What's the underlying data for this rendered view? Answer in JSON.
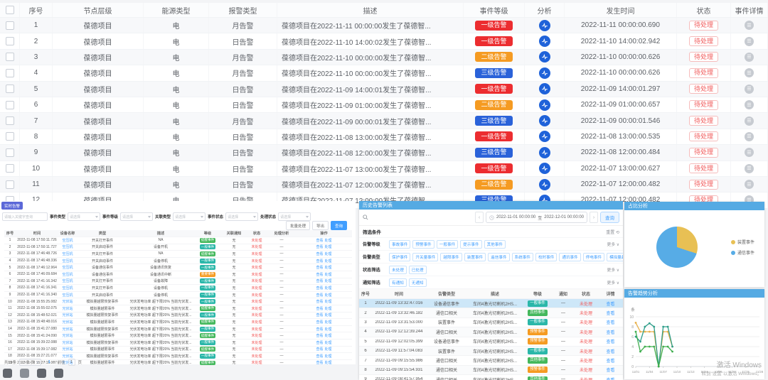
{
  "main_table": {
    "columns": [
      "",
      "序号",
      "节点层级",
      "能源类型",
      "报警类型",
      "描述",
      "事件等级",
      "分析",
      "发生时间",
      "状态",
      "事件详情"
    ],
    "level_colors": {
      "一级告警": "#ec2d30",
      "二级告警": "#f59b22",
      "三级告警": "#2a62d9"
    },
    "rows": [
      {
        "no": "1",
        "node": "葆德项目",
        "energy": "电",
        "alarm": "月告警",
        "desc": "葆德项目在2022-11-11 00:00:00发生了葆德智...",
        "level": "一级告警",
        "time": "2022-11-11 00:00:00.690",
        "status": "待处理"
      },
      {
        "no": "2",
        "node": "葆德项目",
        "energy": "电",
        "alarm": "日告警",
        "desc": "葆德项目在2022-11-10 14:00:02发生了葆德智...",
        "level": "一级告警",
        "time": "2022-11-10 14:00:02.942",
        "status": "待处理"
      },
      {
        "no": "3",
        "node": "葆德项目",
        "energy": "电",
        "alarm": "月告警",
        "desc": "葆德项目在2022-11-10 00:00:00发生了葆德智...",
        "level": "二级告警",
        "time": "2022-11-10 00:00:00.626",
        "status": "待处理"
      },
      {
        "no": "4",
        "node": "葆德项目",
        "energy": "电",
        "alarm": "月告警",
        "desc": "葆德项目在2022-11-10 00:00:00发生了葆德智...",
        "level": "三级告警",
        "time": "2022-11-10 00:00:00.626",
        "status": "待处理"
      },
      {
        "no": "5",
        "node": "葆德项目",
        "energy": "电",
        "alarm": "日告警",
        "desc": "葆德项目在2022-11-09 14:00:01发生了葆德智...",
        "level": "一级告警",
        "time": "2022-11-09 14:00:01.297",
        "status": "待处理"
      },
      {
        "no": "6",
        "node": "葆德项目",
        "energy": "电",
        "alarm": "日告警",
        "desc": "葆德项目在2022-11-09 01:00:00发生了葆德智...",
        "level": "二级告警",
        "time": "2022-11-09 01:00:00.657",
        "status": "待处理"
      },
      {
        "no": "7",
        "node": "葆德项目",
        "energy": "电",
        "alarm": "月告警",
        "desc": "葆德项目在2022-11-09 00:00:01发生了葆德智...",
        "level": "三级告警",
        "time": "2022-11-09 00:00:01.546",
        "status": "待处理"
      },
      {
        "no": "8",
        "node": "葆德项目",
        "energy": "电",
        "alarm": "日告警",
        "desc": "葆德项目在2022-11-08 13:00:00发生了葆德智...",
        "level": "一级告警",
        "time": "2022-11-08 13:00:00.535",
        "status": "待处理"
      },
      {
        "no": "9",
        "node": "葆德项目",
        "energy": "电",
        "alarm": "日告警",
        "desc": "葆德项目在2022-11-08 12:00:00发生了葆德智...",
        "level": "三级告警",
        "time": "2022-11-08 12:00:00.484",
        "status": "待处理"
      },
      {
        "no": "10",
        "node": "葆德项目",
        "energy": "电",
        "alarm": "日告警",
        "desc": "葆德项目在2022-11-07 13:00:00发生了葆德智...",
        "level": "一级告警",
        "time": "2022-11-07 13:00:00.627",
        "status": "待处理"
      },
      {
        "no": "11",
        "node": "葆德项目",
        "energy": "电",
        "alarm": "日告警",
        "desc": "葆德项目在2022-11-07 12:00:00发生了葆德智...",
        "level": "二级告警",
        "time": "2022-11-07 12:00:00.482",
        "status": "待处理"
      },
      {
        "no": "12",
        "node": "葆德项目",
        "energy": "电",
        "alarm": "日告警",
        "desc": "葆德项目在2022-11-07 12:00:00发生了葆德智...",
        "level": "三级告警",
        "time": "2022-11-07 12:00:00.482",
        "status": "待处理"
      }
    ]
  },
  "left_panel": {
    "tab_label": "实时告警",
    "search_placeholder": "请输入关键字查询",
    "filters": [
      {
        "label": "事件类型",
        "value": "请选择"
      },
      {
        "label": "事件等级",
        "value": "请选择"
      },
      {
        "label": "关联类型",
        "value": "请选择"
      },
      {
        "label": "事件状态",
        "value": "请选择"
      },
      {
        "label": "处理状态",
        "value": "请选择"
      }
    ],
    "buttons": [
      "批量处理",
      "导出",
      "查询"
    ],
    "columns": [
      "序号",
      "时间",
      "设备名称",
      "类型",
      "描述",
      "等级",
      "关联通知",
      "状态",
      "处理分析",
      "操作"
    ],
    "badge_colors": {
      "提醒事件": "#44b85c",
      "一般事件": "#2ab7a9",
      "重要事件": "#f59b22"
    },
    "ops": [
      "查看",
      "处理"
    ],
    "common": {
      "notice": "无",
      "status": "未处理",
      "analysis": "—"
    },
    "rows": [
      {
        "no": "1",
        "time": "2022-11-08 17:50:11.726",
        "device": "空压机",
        "type": "开关打开事件",
        "desc": "NA",
        "level": "提醒事件"
      },
      {
        "no": "2",
        "time": "2022-11-08 17:50:11.727",
        "device": "空压机",
        "type": "开关启动事件",
        "desc": "设备开机",
        "level": "一般事件"
      },
      {
        "no": "3",
        "time": "2022-11-08 17:46:48.726",
        "device": "空压机",
        "type": "开关打开事件",
        "desc": "NA",
        "level": "提醒事件"
      },
      {
        "no": "4",
        "time": "2022-11-08 17:46:48.336",
        "device": "空压机",
        "type": "开关启动事件",
        "desc": "设备停机",
        "level": "一般事件"
      },
      {
        "no": "5",
        "time": "2022-11-08 17:46:12.964",
        "device": "空压机",
        "type": "设备通信事件",
        "desc": "设备通讯恢复",
        "level": "一般事件"
      },
      {
        "no": "6",
        "time": "2022-11-08 17:46:09.684",
        "device": "空压机",
        "type": "设备通信事件",
        "desc": "设备通讯中断",
        "level": "重要事件"
      },
      {
        "no": "7",
        "time": "2022-11-08 17:41:16.342",
        "device": "空压机",
        "type": "开关打开事件",
        "desc": "设备故障",
        "level": "一般事件"
      },
      {
        "no": "8",
        "time": "2022-11-08 17:41:16.341",
        "device": "空压机",
        "type": "开关打开事件",
        "desc": "设备停机",
        "level": "一般事件"
      },
      {
        "no": "9",
        "time": "2022-11-08 17:41:16.340",
        "device": "空压机",
        "type": "开关启动事件",
        "desc": "设备停机",
        "level": "一般事件"
      },
      {
        "no": "10",
        "time": "2022-11-08 15:55:25.082",
        "device": "光伏站",
        "type": "模拟量越限恢复事件",
        "desc": "光伏发电功率 超下限20% 当前光伏发...",
        "level": "一般事件"
      },
      {
        "no": "11",
        "time": "2022-11-08 15:55:02.075",
        "device": "光伏站",
        "type": "模拟量越限事件",
        "desc": "光伏发电功率 超下限20% 当前光伏发...",
        "level": "提醒事件"
      },
      {
        "no": "12",
        "time": "2022-11-08 15:48:52.021",
        "device": "光伏站",
        "type": "模拟量越限恢复事件",
        "desc": "光伏发电功率 超下限20% 当前光伏发...",
        "level": "一般事件"
      },
      {
        "no": "13",
        "time": "2022-11-08 15:48:48.016",
        "device": "光伏站",
        "type": "模拟量越限事件",
        "desc": "光伏发电功率 超下限20% 当前光伏发...",
        "level": "提醒事件"
      },
      {
        "no": "14",
        "time": "2022-11-08 15:41:27.080",
        "device": "光伏站",
        "type": "模拟量越限恢复事件",
        "desc": "光伏发电功率 超下限20% 当前光伏发...",
        "level": "一般事件"
      },
      {
        "no": "15",
        "time": "2022-11-08 15:41:24.090",
        "device": "光伏站",
        "type": "模拟量越限事件",
        "desc": "光伏发电功率 超下限20% 当前光伏发...",
        "level": "提醒事件"
      },
      {
        "no": "16",
        "time": "2022-11-08 15:39:22.088",
        "device": "光伏站",
        "type": "模拟量越限恢复事件",
        "desc": "光伏发电功率 超下限20% 当前光伏发...",
        "level": "一般事件"
      },
      {
        "no": "17",
        "time": "2022-11-08 15:39:17.082",
        "device": "光伏站",
        "type": "模拟量越限事件",
        "desc": "光伏发电功率 超下限20% 当前光伏发...",
        "level": "提醒事件"
      },
      {
        "no": "18",
        "time": "2022-11-08 15:27:21.077",
        "device": "光伏站",
        "type": "模拟量越限恢复事件",
        "desc": "光伏发电功率 超下限20% 当前光伏发...",
        "level": "一般事件"
      },
      {
        "no": "19",
        "time": "2022-11-08 15:27:15.007",
        "device": "光伏站",
        "type": "模拟量越限事件",
        "desc": "光伏发电功率 超下限20% 当前光伏发...",
        "level": "提醒事件"
      }
    ],
    "pagination": {
      "total": "共19条",
      "per_page": "10条/页",
      "prev": "‹",
      "page": "1",
      "next": "›",
      "goto": "前往",
      "unit": "页"
    }
  },
  "mid_panel": {
    "title": "历史告警列表",
    "date_from": "2022-11-01 00:00:00",
    "date_sep": "至",
    "date_to": "2022-12-01 00:00:00",
    "prev": "‹",
    "next": "›",
    "query_label": "查询",
    "filter_label": "筛选条件",
    "reset_label": "重置 ⟲",
    "filter_rows": [
      {
        "label": "告警等级",
        "chips": [
          "事故事件",
          "预警事件",
          "一般事件",
          "提示事件",
          "其他事件"
        ],
        "more": "更多 ∨"
      },
      {
        "label": "告警类型",
        "chips": [
          "保护事件",
          "开关量事件",
          "越限事件",
          "装置事件",
          "遥信事件",
          "系统事件",
          "校时事件",
          "通讯事件",
          "停电事件",
          "模拟量越限事件"
        ],
        "more": "更多 ∨"
      },
      {
        "label": "状态筛选",
        "chips": [
          "未处理",
          "已处理"
        ],
        "more": "更多 ∨"
      },
      {
        "label": "通知筛选",
        "chips": [
          "有通知",
          "无通知"
        ],
        "more": "更多 ∨"
      }
    ],
    "columns": [
      "序号",
      "时间",
      "告警类型",
      "描述",
      "等级",
      "通知",
      "状态",
      "详情"
    ],
    "badge_colors": {
      "一般事件": "#2ab7a9",
      "其他事件": "#44b85c",
      "预警事件": "#f59b22"
    },
    "rows": [
      {
        "no": "1",
        "time": "2022-11-09 13:32:47.016",
        "type": "设备通信事件",
        "desc": "车间4激光切割机2HS...",
        "level": "一般事件",
        "notice": "—",
        "status": "未处理",
        "detail": "查看",
        "selected": true
      },
      {
        "no": "2",
        "time": "2022-11-09 13:32:46.182",
        "type": "通信口相关",
        "desc": "车间4激光切割机2HS...",
        "level": "其他事件",
        "notice": "—",
        "status": "未处理",
        "detail": "查看"
      },
      {
        "no": "3",
        "time": "2022-11-09 13:31:53.000",
        "type": "装置事件",
        "desc": "车间4激光切割机2HS...",
        "level": "一般事件",
        "notice": "—",
        "status": "未处理",
        "detail": "查看"
      },
      {
        "no": "4",
        "time": "2022-11-09 12:12:39.244",
        "type": "通信口相关",
        "desc": "车间4激光切割机2HS...",
        "level": "预警事件",
        "notice": "—",
        "status": "未处理",
        "detail": "查看"
      },
      {
        "no": "5",
        "time": "2022-11-09 12:02:05.399",
        "type": "设备通信事件",
        "desc": "车间4激光切割机2HS...",
        "level": "预警事件",
        "notice": "—",
        "status": "未处理",
        "detail": "查看"
      },
      {
        "no": "6",
        "time": "2022-11-09 11:57:04.083",
        "type": "装置事件",
        "desc": "车间4激光切割机2HS...",
        "level": "一般事件",
        "notice": "—",
        "status": "未处理",
        "detail": "查看"
      },
      {
        "no": "7",
        "time": "2022-11-09 09:15:55.986",
        "type": "通信口相关",
        "desc": "车间4激光切割机2HS...",
        "level": "其他事件",
        "notice": "—",
        "status": "未处理",
        "detail": "查看"
      },
      {
        "no": "8",
        "time": "2022-11-09 09:15:54.931",
        "type": "通信口相关",
        "desc": "车间4激光切割机2HS...",
        "level": "预警事件",
        "notice": "—",
        "status": "未处理",
        "detail": "查看"
      },
      {
        "no": "9",
        "time": "2022-11-09 08:41:57.954",
        "type": "通信口相关",
        "desc": "车间4激光切割机2HS...",
        "level": "其他事件",
        "notice": "—",
        "status": "未处理",
        "detail": "查看"
      },
      {
        "no": "10",
        "time": "2022-11-09 08:41:05.000",
        "type": "装置事件",
        "desc": "车间4激光切割机2HS...",
        "level": "一般事件",
        "notice": "—",
        "status": "未处理",
        "detail": "查看"
      }
    ]
  },
  "chart_data": [
    {
      "type": "pie",
      "title": "占比分析",
      "slices": [
        {
          "label": "装置事件",
          "value": 30,
          "color": "#e8c054"
        },
        {
          "label": "通信事件",
          "value": 70,
          "color": "#57ace6"
        }
      ],
      "legend_position": "right"
    },
    {
      "type": "line",
      "title": "告警趋势分析",
      "ylabel": "条",
      "ylim": [
        0,
        10
      ],
      "yticks": [
        0,
        2,
        4,
        6,
        8,
        10
      ],
      "xticks": [
        "11/01",
        "11/04",
        "11/07",
        "11/10",
        "11/13",
        "11/16",
        "11/19",
        "11/22",
        "11/25",
        "11/28"
      ],
      "x_range_days": 28,
      "x_days": [
        "11/01",
        "11/02",
        "11/03",
        "11/04",
        "11/05",
        "11/06",
        "11/07",
        "11/08",
        "11/09"
      ],
      "grid": true,
      "series": [
        {
          "name": "series-yellow",
          "color": "#e8b14b",
          "values": [
            8.8,
            7,
            7,
            7,
            7,
            0,
            7,
            7,
            4
          ]
        },
        {
          "name": "series-teal",
          "color": "#2f9e8a",
          "values": [
            6,
            5,
            8,
            8.7,
            8,
            0,
            8,
            8,
            4
          ]
        },
        {
          "name": "series-green",
          "color": "#3fae4e",
          "values": [
            7,
            3,
            4,
            4,
            4,
            0,
            4,
            4,
            3
          ]
        }
      ]
    }
  ],
  "watermark": {
    "line1": "激活 Windows",
    "line2": "转到“设置”以激活 Windows。"
  },
  "taskbar": {
    "icons": [
      "app-icon-1",
      "folder-icon",
      "app-icon-2",
      "chat-icon"
    ]
  }
}
